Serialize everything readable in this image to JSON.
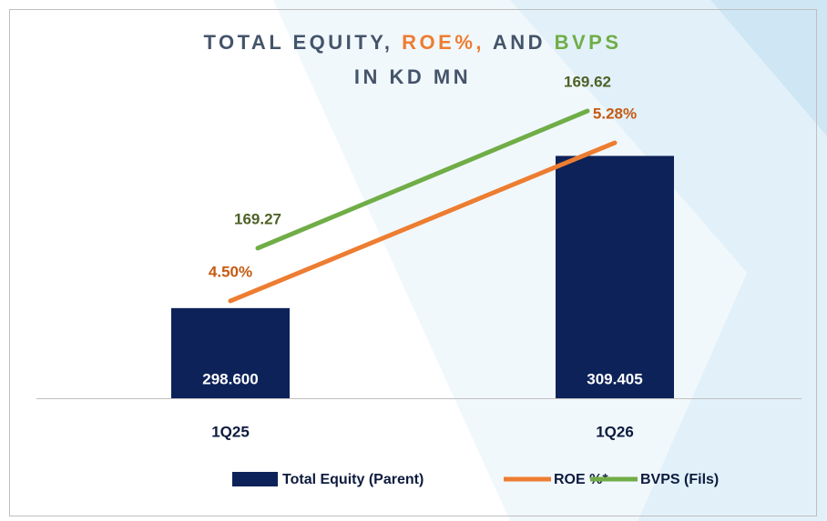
{
  "chart_data": {
    "type": "bar",
    "title_segments": [
      {
        "text": "TOTAL EQUITY, ",
        "color": "#44546a"
      },
      {
        "text": "ROE%, ",
        "color": "#ed7d31"
      },
      {
        "text": "AND ",
        "color": "#44546a"
      },
      {
        "text": "BVPS",
        "color": "#70ad47"
      }
    ],
    "subtitle": "IN KD MN",
    "categories": [
      "1Q25",
      "1Q26"
    ],
    "series": [
      {
        "name": "Total Equity (Parent)",
        "type": "bar",
        "color": "#0d2259",
        "label_color": "#ffffff",
        "values": [
          298.6,
          309.405
        ],
        "value_labels": [
          "298.600",
          "309.405"
        ],
        "axis": "y"
      },
      {
        "name": "ROE %*",
        "type": "line",
        "color": "#ed7d31",
        "label_color": "#c55a11",
        "values": [
          4.5,
          5.28
        ],
        "value_labels": [
          "4.50%",
          "5.28%"
        ],
        "axis": "y2"
      },
      {
        "name": "BVPS (Fils)",
        "type": "line",
        "color": "#70ad47",
        "label_color": "#4f6228",
        "values": [
          169.27,
          169.62
        ],
        "axis": "y3"
      }
    ],
    "ylim": [
      292.2,
      316.6
    ],
    "y2lim": [
      4.02,
      5.715
    ],
    "y3lim": [
      168.887,
      169.764
    ]
  }
}
